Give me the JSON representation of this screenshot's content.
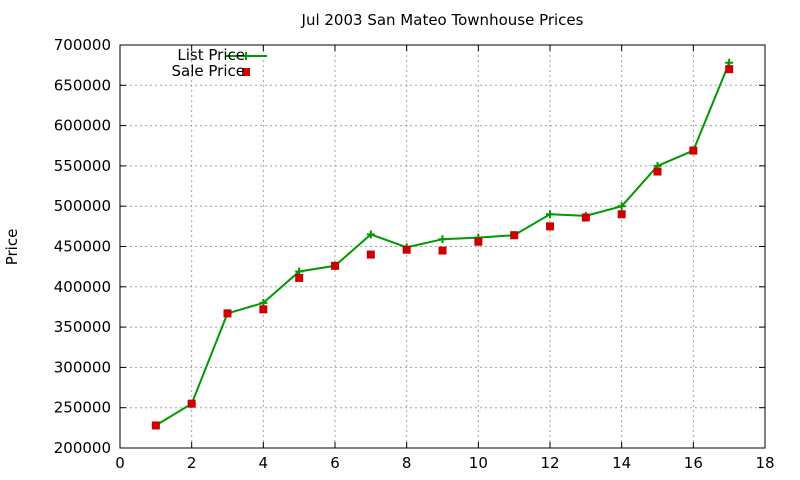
{
  "chart_data": {
    "type": "line",
    "title": "Jul 2003 San Mateo Townhouse Prices",
    "xlabel": "",
    "ylabel": "Price",
    "xlim": [
      0,
      18
    ],
    "ylim": [
      200000,
      700000
    ],
    "xticks": [
      0,
      2,
      4,
      6,
      8,
      10,
      12,
      14,
      16,
      18
    ],
    "yticks": [
      200000,
      250000,
      300000,
      350000,
      400000,
      450000,
      500000,
      550000,
      600000,
      650000,
      700000
    ],
    "grid": true,
    "legend_position": "top-left",
    "series": [
      {
        "name": "List Price",
        "style": "line-with-plus-markers",
        "color": "#009900",
        "x": [
          1,
          2,
          3,
          4,
          5,
          6,
          7,
          8,
          9,
          10,
          11,
          12,
          13,
          14,
          15,
          16,
          17
        ],
        "y": [
          228000,
          255000,
          367000,
          380000,
          419000,
          426000,
          465000,
          449000,
          459000,
          461000,
          464000,
          490000,
          488000,
          500000,
          550000,
          569000,
          678000
        ]
      },
      {
        "name": "Sale Price",
        "style": "square-markers",
        "color": "#cc0000",
        "x": [
          1,
          2,
          3,
          4,
          5,
          6,
          7,
          8,
          9,
          10,
          11,
          12,
          13,
          14,
          15,
          16,
          17
        ],
        "y": [
          228000,
          255000,
          367000,
          372000,
          411000,
          426000,
          440000,
          446000,
          445000,
          456000,
          464000,
          475000,
          486000,
          490000,
          543000,
          569000,
          670000
        ]
      }
    ]
  }
}
